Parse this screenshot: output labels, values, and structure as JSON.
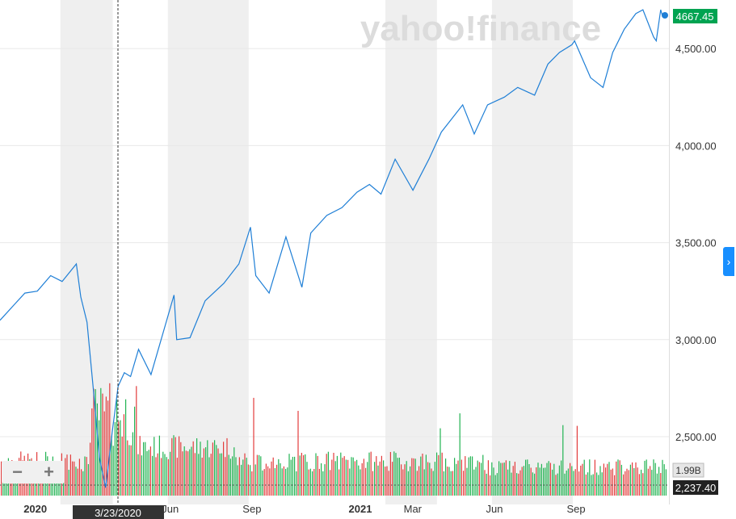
{
  "brand": {
    "logo_text": "yahoo!finance"
  },
  "chart_data": {
    "type": "line",
    "x": [
      "2019-11-25",
      "2019-12-09",
      "2019-12-23",
      "2020-01-06",
      "2020-01-21",
      "2020-02-03",
      "2020-02-19",
      "2020-02-24",
      "2020-03-02",
      "2020-03-09",
      "2020-03-16",
      "2020-03-23",
      "2020-03-30",
      "2020-04-06",
      "2020-04-13",
      "2020-04-20",
      "2020-04-29",
      "2020-05-13",
      "2020-06-08",
      "2020-06-11",
      "2020-06-26",
      "2020-07-13",
      "2020-08-03",
      "2020-08-20",
      "2020-09-02",
      "2020-09-08",
      "2020-09-23",
      "2020-10-12",
      "2020-10-30",
      "2020-11-09",
      "2020-11-27",
      "2020-12-14",
      "2020-12-31",
      "2021-01-14",
      "2021-01-27",
      "2021-02-12",
      "2021-03-04",
      "2021-03-22",
      "2021-04-05",
      "2021-04-29",
      "2021-05-12",
      "2021-05-27",
      "2021-06-15",
      "2021-06-30",
      "2021-07-19",
      "2021-08-03",
      "2021-08-16",
      "2021-08-30",
      "2021-09-02",
      "2021-09-20",
      "2021-10-04",
      "2021-10-15",
      "2021-10-28",
      "2021-11-10",
      "2021-11-18",
      "2021-11-30",
      "2021-12-03",
      "2021-12-08",
      "2021-12-10"
    ],
    "values": [
      3100,
      3170,
      3240,
      3250,
      3330,
      3300,
      3390,
      3220,
      3090,
      2750,
      2390,
      2237,
      2510,
      2760,
      2830,
      2810,
      2950,
      2820,
      3230,
      3000,
      3010,
      3200,
      3290,
      3390,
      3580,
      3330,
      3240,
      3530,
      3270,
      3550,
      3640,
      3680,
      3760,
      3800,
      3750,
      3930,
      3770,
      3930,
      4070,
      4210,
      4060,
      4210,
      4250,
      4300,
      4260,
      4420,
      4480,
      4520,
      4540,
      4350,
      4300,
      4480,
      4600,
      4680,
      4700,
      4560,
      4540,
      4700,
      4667.45
    ],
    "volume_series": {
      "name": "Volume",
      "last_value_label": "1.99B"
    },
    "y_ticks": [
      "2,500.00",
      "3,000.00",
      "3,500.00",
      "4,000.00",
      "4,500.00"
    ],
    "ylim": [
      2160,
      4770
    ],
    "x_ticks": [
      "2020",
      "Mar",
      "Jun",
      "Sep",
      "2021",
      "Mar",
      "Jun",
      "Sep"
    ],
    "crosshair_date_label": "3/23/2020",
    "crosshair_value_label": "2,237.40",
    "last_price_label": "4667.45",
    "grid": true,
    "colors": {
      "line": "#1f7fd6",
      "up": "#21b352",
      "down": "#e23c3c",
      "price_badge": "#00a351",
      "band": "#efefef"
    }
  }
}
